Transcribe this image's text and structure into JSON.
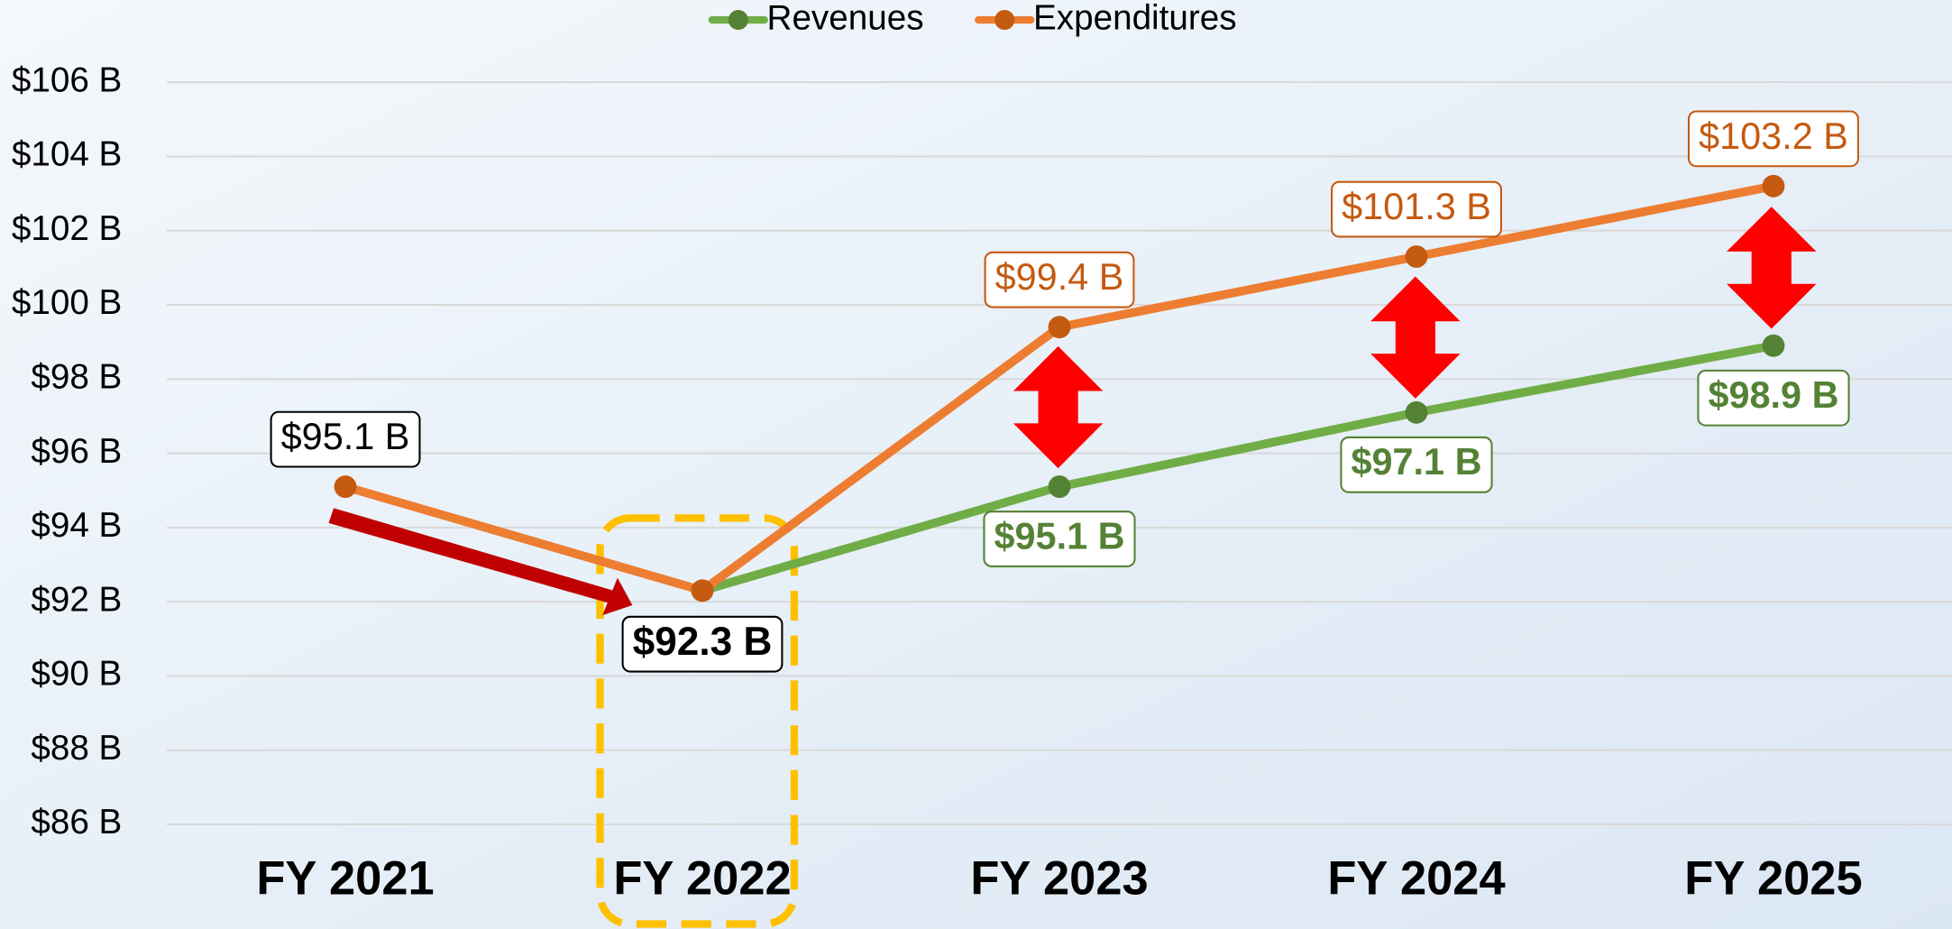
{
  "chart_data": {
    "type": "line",
    "categories": [
      "FY 2021",
      "FY 2022",
      "FY 2023",
      "FY 2024",
      "FY 2025"
    ],
    "series": [
      {
        "name": "Revenues",
        "color": "#70ad47",
        "label_color": "#548235",
        "values": [
          null,
          92.3,
          95.1,
          97.1,
          98.9
        ],
        "value_labels": [
          null,
          null,
          "$95.1 B",
          "$97.1 B",
          "$98.9 B"
        ]
      },
      {
        "name": "Expenditures",
        "color": "#ed7d31",
        "label_color": "#c55a11",
        "values": [
          95.1,
          92.3,
          99.4,
          101.3,
          103.2
        ],
        "value_labels": [
          "$95.1 B",
          "$92.3 B",
          "$99.4 B",
          "$101.3 B",
          "$103.2 B"
        ]
      }
    ],
    "ylim": [
      86,
      106
    ],
    "yticks": [
      {
        "value": 86,
        "label": "$86 B"
      },
      {
        "value": 88,
        "label": "$88 B"
      },
      {
        "value": 90,
        "label": "$90 B"
      },
      {
        "value": 92,
        "label": "$92 B"
      },
      {
        "value": 94,
        "label": "$94 B"
      },
      {
        "value": 96,
        "label": "$96 B"
      },
      {
        "value": 98,
        "label": "$98 B"
      },
      {
        "value": 100,
        "label": "$100 B"
      },
      {
        "value": 102,
        "label": "$102 B"
      },
      {
        "value": 104,
        "label": "$104 B"
      },
      {
        "value": 106,
        "label": "$106 B"
      }
    ],
    "grid": true,
    "legend": "top"
  }
}
